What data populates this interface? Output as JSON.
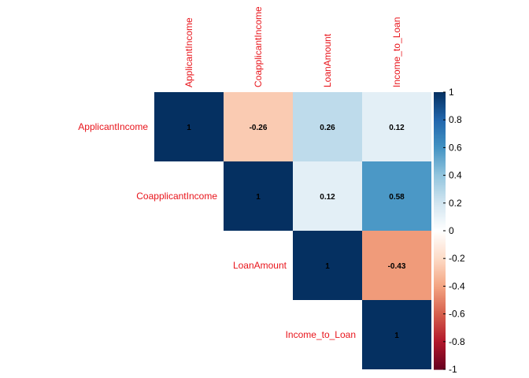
{
  "chart_data": {
    "type": "heatmap",
    "subtype": "correlation-matrix-upper",
    "variables": [
      "ApplicantIncome",
      "CoapplicantIncome",
      "LoanAmount",
      "Income_to_Loan"
    ],
    "matrix": [
      [
        1,
        -0.26,
        0.26,
        0.12
      ],
      [
        -0.26,
        1,
        0.12,
        0.58
      ],
      [
        0.26,
        0.12,
        1,
        -0.43
      ],
      [
        0.12,
        0.58,
        -0.43,
        1
      ]
    ],
    "cell_labels": [
      [
        "1",
        "-0.26",
        "0.26",
        "0.12"
      ],
      [
        "",
        "1",
        "0.12",
        "0.58"
      ],
      [
        "",
        "",
        "1",
        "-0.43"
      ],
      [
        "",
        "",
        "",
        "1"
      ]
    ],
    "colorbar": {
      "range": [
        -1,
        1
      ],
      "ticks": [
        1,
        0.8,
        0.6,
        0.4,
        0.2,
        0,
        -0.2,
        -0.4,
        -0.6,
        -0.8,
        -1
      ],
      "tick_labels": [
        "1",
        "0.8",
        "0.6",
        "0.4",
        "0.2",
        "0",
        "-0.2",
        "-0.4",
        "-0.6",
        "-0.8",
        "-1"
      ],
      "colors": {
        "pos_1": "#053061",
        "pos_0_5": "#4393c3",
        "zero": "#ffffff",
        "neg_0_5": "#f4a582",
        "neg_1": "#67001f"
      }
    },
    "label_color": "#e8141b",
    "legend_position": "right"
  }
}
